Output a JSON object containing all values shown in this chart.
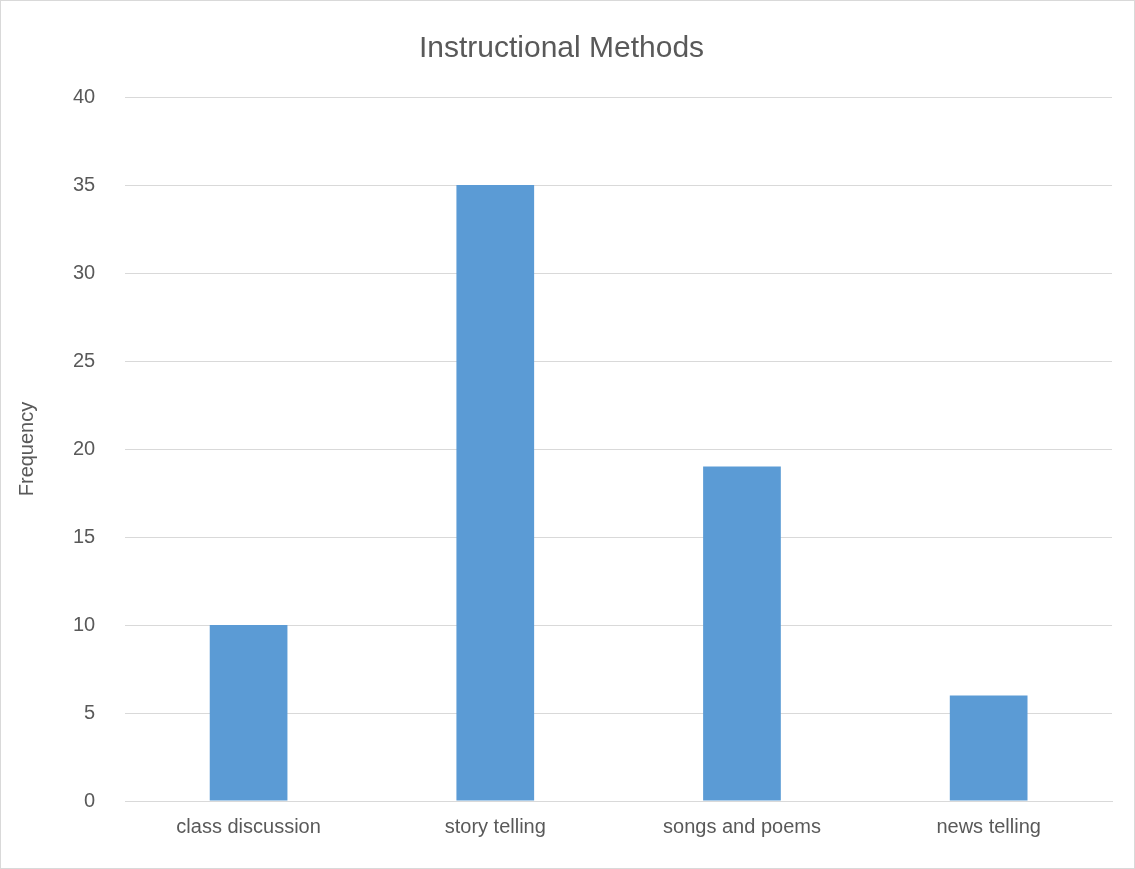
{
  "chart_data": {
    "type": "bar",
    "title": "Instructional Methods",
    "ylabel": "Frequency",
    "categories": [
      "class discussion",
      "story telling",
      "songs and poems",
      "news telling"
    ],
    "values": [
      10,
      35,
      19,
      6
    ],
    "color": "#5b9bd5",
    "ylim": [
      0,
      40
    ],
    "yticks": [
      0,
      5,
      10,
      15,
      20,
      25,
      30,
      35,
      40
    ],
    "grid": "y",
    "legend": false
  }
}
